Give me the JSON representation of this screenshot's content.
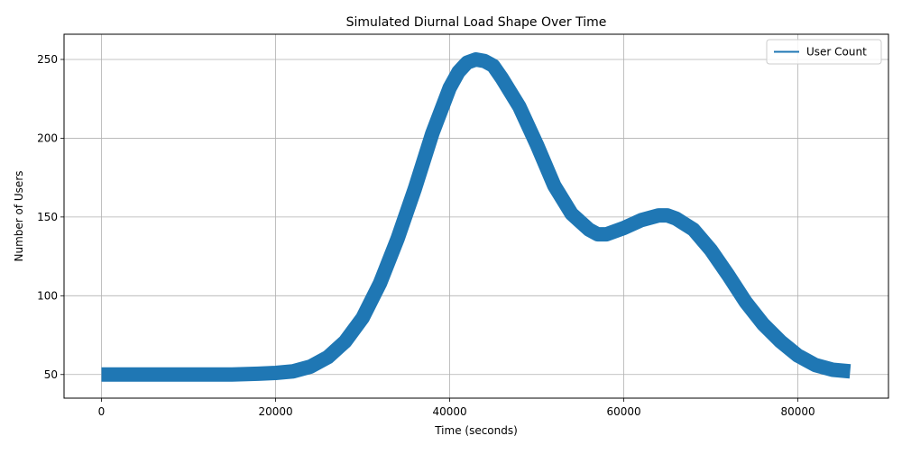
{
  "chart_data": {
    "type": "line",
    "title": "Simulated Diurnal Load Shape Over Time",
    "xlabel": "Time (seconds)",
    "ylabel": "Number of Users",
    "xlim": [
      -4300,
      90400
    ],
    "ylim": [
      35,
      266
    ],
    "grid": true,
    "legend": {
      "placement": "top-right",
      "entries": [
        "User Count"
      ]
    },
    "x_ticks": [
      {
        "value": 0,
        "label": "0"
      },
      {
        "value": 20000,
        "label": "20000"
      },
      {
        "value": 40000,
        "label": "40000"
      },
      {
        "value": 60000,
        "label": "60000"
      },
      {
        "value": 80000,
        "label": "80000"
      }
    ],
    "y_ticks": [
      {
        "value": 50,
        "label": "50"
      },
      {
        "value": 100,
        "label": "100"
      },
      {
        "value": 150,
        "label": "150"
      },
      {
        "value": 200,
        "label": "200"
      },
      {
        "value": 250,
        "label": "250"
      }
    ],
    "series_color": "#1f77b4",
    "noise_band": 4,
    "series": [
      {
        "name": "User Count",
        "x": [
          0,
          5000,
          10000,
          15000,
          18000,
          20000,
          22000,
          24000,
          26000,
          28000,
          30000,
          32000,
          34000,
          36000,
          38000,
          40000,
          41000,
          42000,
          43000,
          44000,
          45000,
          46000,
          48000,
          50000,
          52000,
          54000,
          56000,
          57000,
          58000,
          60000,
          62000,
          64000,
          65000,
          66000,
          68000,
          70000,
          72000,
          74000,
          76000,
          78000,
          80000,
          82000,
          84000,
          86000
        ],
        "y": [
          50,
          50,
          50,
          50,
          50.5,
          51,
          52,
          55,
          61,
          71,
          86,
          108,
          136,
          168,
          203,
          232,
          242,
          248,
          250,
          249,
          246,
          238,
          220,
          196,
          170,
          152,
          142,
          139,
          139,
          143,
          148,
          151,
          151,
          149,
          142,
          129,
          113,
          96,
          82,
          71,
          62,
          56,
          53,
          52
        ]
      }
    ]
  }
}
